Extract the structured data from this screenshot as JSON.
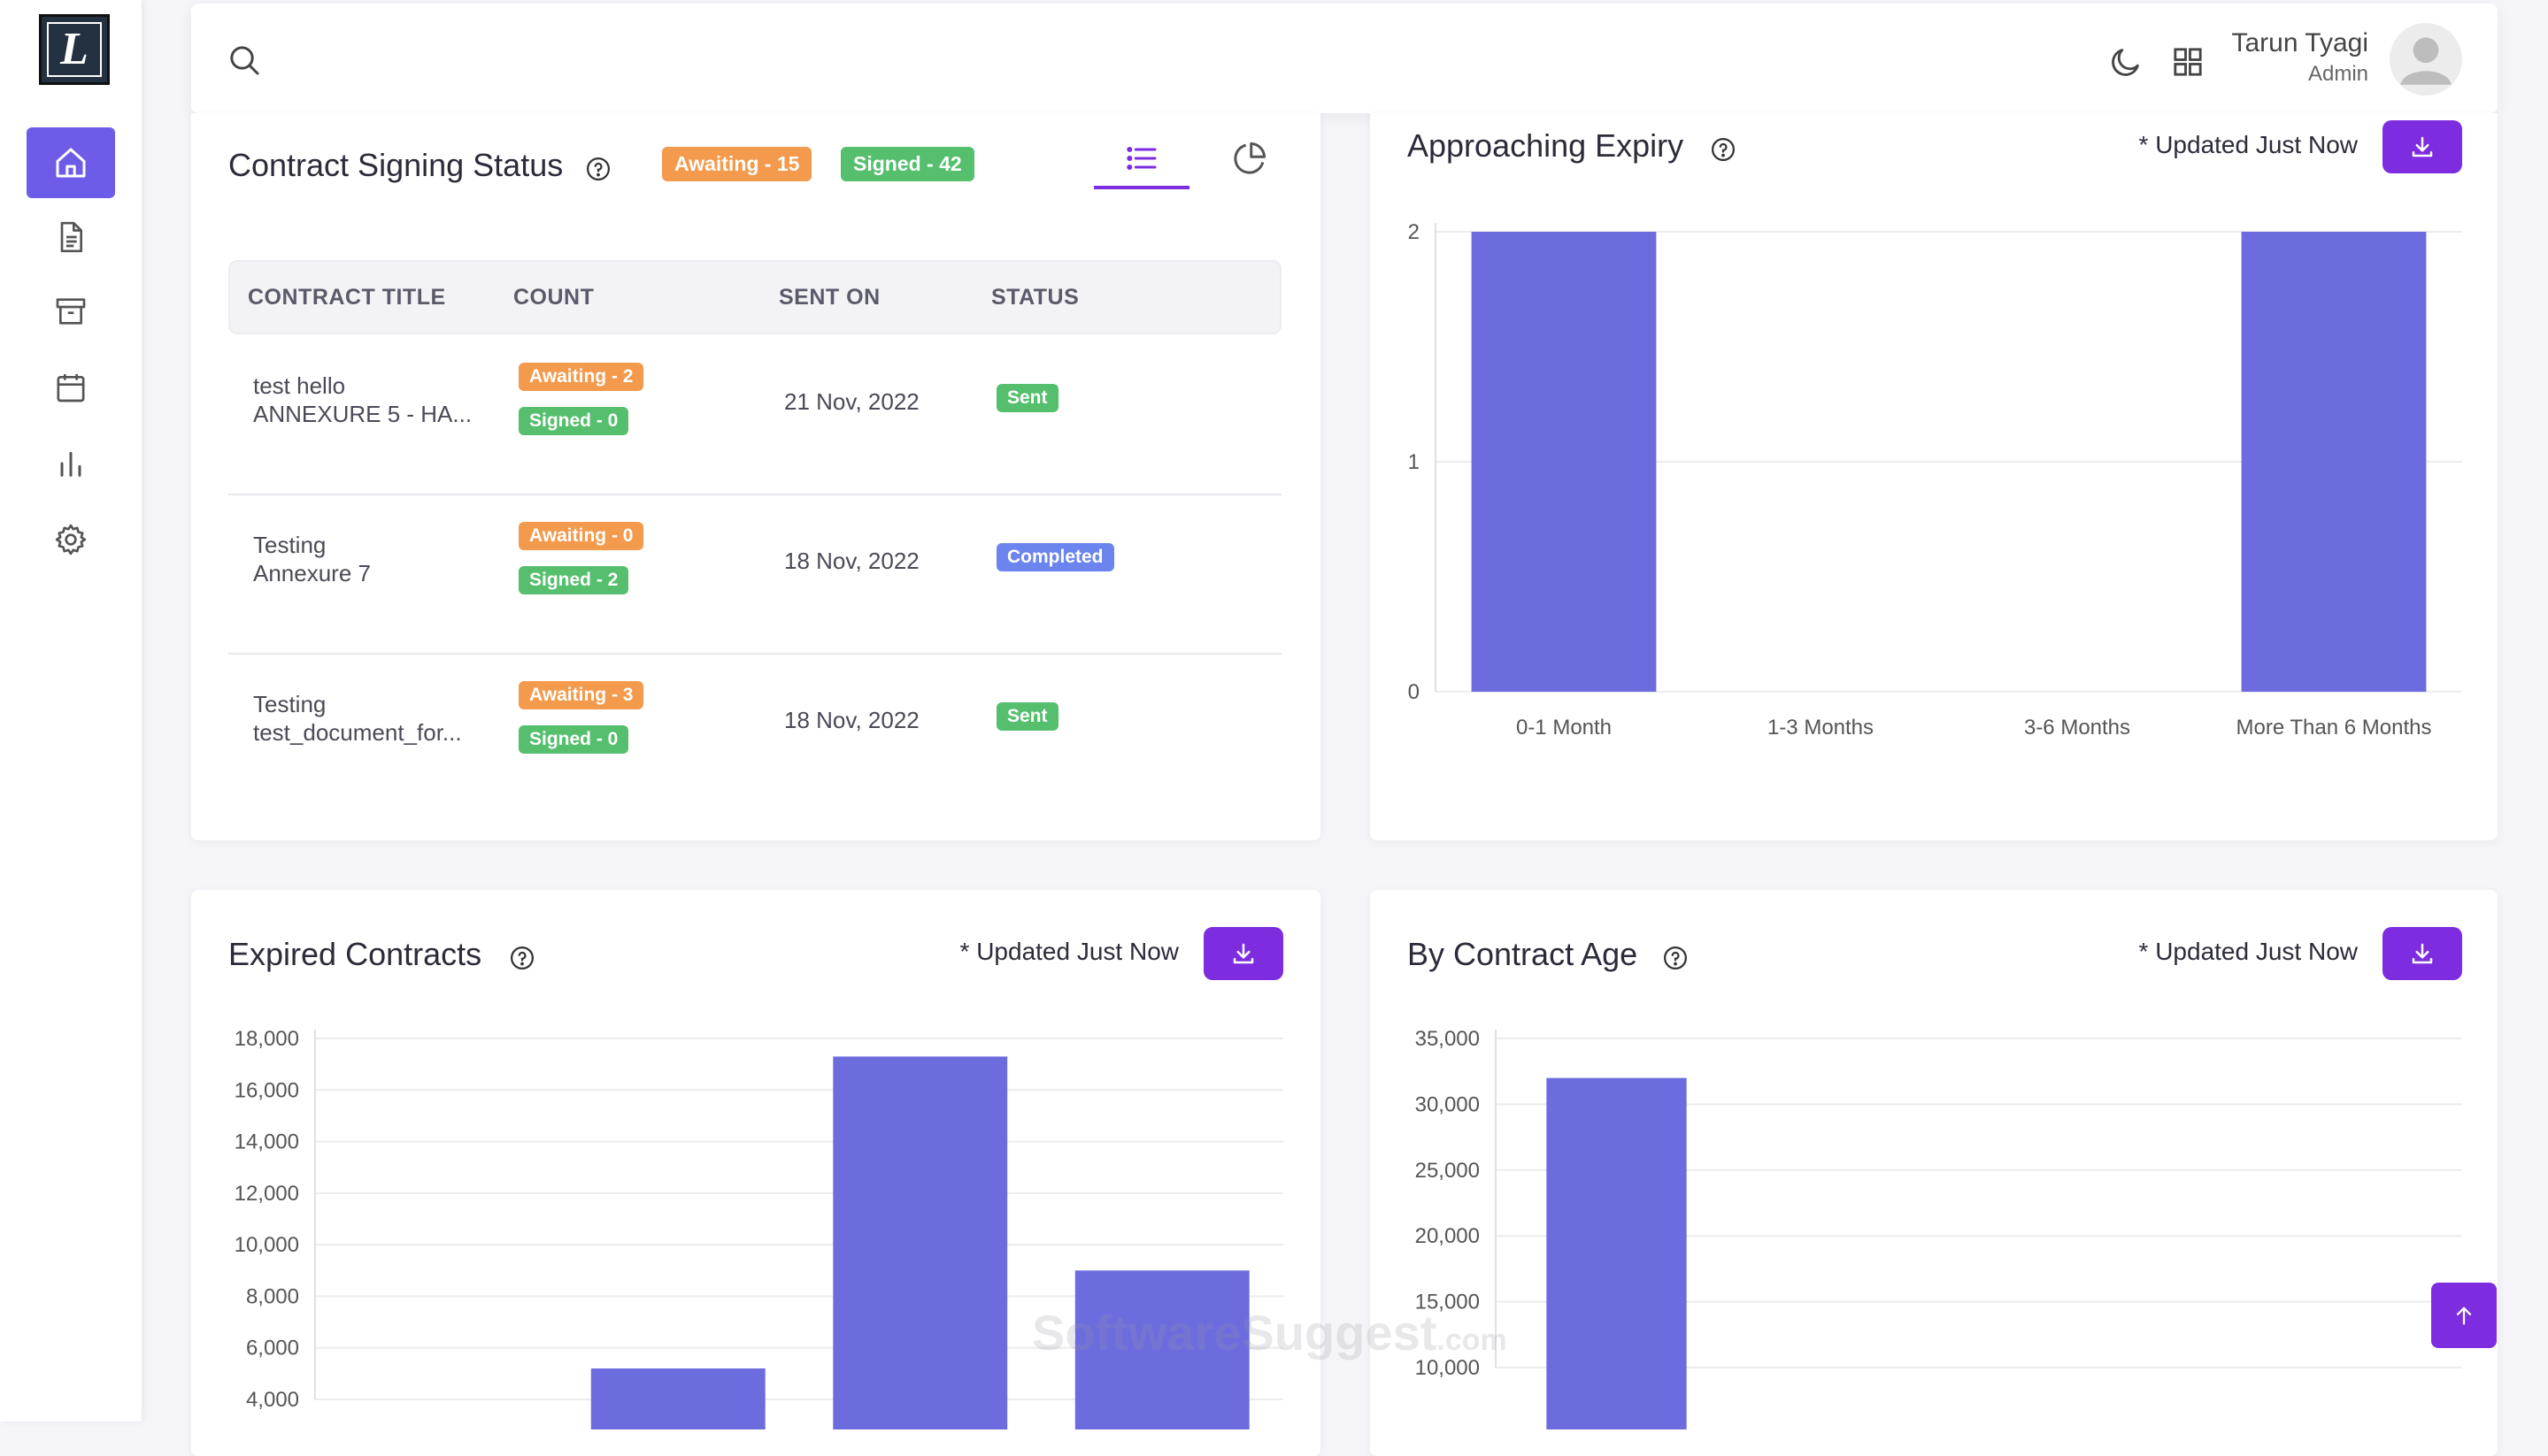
{
  "header": {
    "user_name": "Tarun Tyagi",
    "user_role": "Admin",
    "icons": [
      "search-icon",
      "moon-icon",
      "apps-grid-icon",
      "avatar"
    ]
  },
  "sidebar": {
    "logo_letter": "L",
    "items": [
      {
        "icon": "home-icon",
        "active": true
      },
      {
        "icon": "document-icon",
        "active": false
      },
      {
        "icon": "archive-icon",
        "active": false
      },
      {
        "icon": "calendar-icon",
        "active": false
      },
      {
        "icon": "bar-chart-icon",
        "active": false
      },
      {
        "icon": "gear-icon",
        "active": false
      }
    ]
  },
  "signing_status": {
    "title": "Contract Signing Status",
    "badge_awaiting": "Awaiting - 15",
    "badge_signed": "Signed - 42",
    "view_tabs": [
      "list-view-icon",
      "pie-view-icon"
    ],
    "columns": [
      "CONTRACT TITLE",
      "COUNT",
      "SENT ON",
      "STATUS"
    ],
    "rows": [
      {
        "title_line1": "test hello",
        "title_line2": "ANNEXURE 5 - HA...",
        "awaiting": "Awaiting - 2",
        "signed": "Signed - 0",
        "sent_on": "21 Nov, 2022",
        "status": "Sent"
      },
      {
        "title_line1": "Testing",
        "title_line2": "Annexure 7",
        "awaiting": "Awaiting - 0",
        "signed": "Signed - 2",
        "sent_on": "18 Nov, 2022",
        "status": "Completed"
      },
      {
        "title_line1": "Testing",
        "title_line2": "test_document_for...",
        "awaiting": "Awaiting - 3",
        "signed": "Signed - 0",
        "sent_on": "18 Nov, 2022",
        "status": "Sent"
      }
    ]
  },
  "approaching_expiry": {
    "title": "Approaching Expiry",
    "updated": "* Updated Just Now"
  },
  "expired_contracts": {
    "title": "Expired Contracts",
    "updated": "* Updated Just Now"
  },
  "contract_age": {
    "title": "By Contract Age",
    "updated": "* Updated Just Now"
  },
  "watermark": {
    "main": "SoftwareSuggest",
    "suffix": ".com"
  },
  "colors": {
    "accent": "#7d2ce0",
    "bar": "#6c6cdf",
    "awaiting": "#f39a4c",
    "signed": "#55bf6e",
    "completed": "#6c84ee"
  },
  "chart_data": [
    {
      "type": "bar",
      "title": "Approaching Expiry",
      "categories": [
        "0-1 Month",
        "1-3 Months",
        "3-6 Months",
        "More Than 6 Months"
      ],
      "values": [
        2,
        0,
        0,
        2
      ],
      "ylim": [
        0,
        2
      ],
      "yticks": [
        "0",
        "1",
        "2"
      ],
      "grid": true
    },
    {
      "type": "bar",
      "title": "Expired Contracts",
      "values": [
        null,
        5200,
        17300,
        9000
      ],
      "ylim_visible": [
        4000,
        18000
      ],
      "yticks": [
        "4,000",
        "6,000",
        "8,000",
        "10,000",
        "12,000",
        "14,000",
        "16,000",
        "18,000"
      ],
      "grid": true
    },
    {
      "type": "bar",
      "title": "By Contract Age",
      "values": [
        32000
      ],
      "ylim_visible": [
        10000,
        35000
      ],
      "yticks": [
        "10,000",
        "15,000",
        "20,000",
        "25,000",
        "30,000",
        "35,000"
      ],
      "grid": true
    }
  ]
}
